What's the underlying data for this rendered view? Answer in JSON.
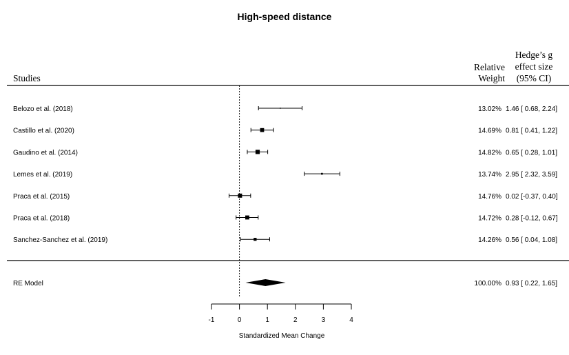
{
  "chart_data": {
    "type": "forest",
    "title": "High-speed distance",
    "columns": {
      "studies": "Studies",
      "weight": [
        "Relative",
        "Weight"
      ],
      "effect": [
        "Hedge’s g",
        "effect size",
        "(95% CI)"
      ]
    },
    "studies": [
      {
        "label": "Belozo et al. (2018)",
        "estimate": 1.46,
        "lower": 0.68,
        "upper": 2.24,
        "weight": 13.02,
        "weight_text": "13.02%",
        "ci_text": "1.46 [ 0.68, 2.24]"
      },
      {
        "label": "Castillo et al. (2020)",
        "estimate": 0.81,
        "lower": 0.41,
        "upper": 1.22,
        "weight": 14.69,
        "weight_text": "14.69%",
        "ci_text": "0.81 [ 0.41, 1.22]"
      },
      {
        "label": "Gaudino et al. (2014)",
        "estimate": 0.65,
        "lower": 0.28,
        "upper": 1.01,
        "weight": 14.82,
        "weight_text": "14.82%",
        "ci_text": "0.65 [ 0.28, 1.01]"
      },
      {
        "label": "Lemes et al. (2019)",
        "estimate": 2.95,
        "lower": 2.32,
        "upper": 3.59,
        "weight": 13.74,
        "weight_text": "13.74%",
        "ci_text": "2.95 [ 2.32, 3.59]"
      },
      {
        "label": "Praca et al. (2015)",
        "estimate": 0.02,
        "lower": -0.37,
        "upper": 0.4,
        "weight": 14.76,
        "weight_text": "14.76%",
        "ci_text": "0.02 [-0.37, 0.40]"
      },
      {
        "label": "Praca et al. (2018)",
        "estimate": 0.28,
        "lower": -0.12,
        "upper": 0.67,
        "weight": 14.72,
        "weight_text": "14.72%",
        "ci_text": "0.28 [-0.12, 0.67]"
      },
      {
        "label": "Sanchez-Sanchez et al. (2019)",
        "estimate": 0.56,
        "lower": 0.04,
        "upper": 1.08,
        "weight": 14.26,
        "weight_text": "14.26%",
        "ci_text": "0.56 [ 0.04, 1.08]"
      }
    ],
    "summary": {
      "label": "RE Model",
      "estimate": 0.93,
      "lower": 0.22,
      "upper": 1.65,
      "weight": 100.0,
      "weight_text": "100.00%",
      "ci_text": "0.93 [ 0.22, 1.65]"
    },
    "xlabel": "Standardized Mean Change",
    "xticks": [
      -1,
      0,
      1,
      2,
      3,
      4
    ],
    "xlim": [
      -1,
      4
    ],
    "reference_line": 0
  }
}
